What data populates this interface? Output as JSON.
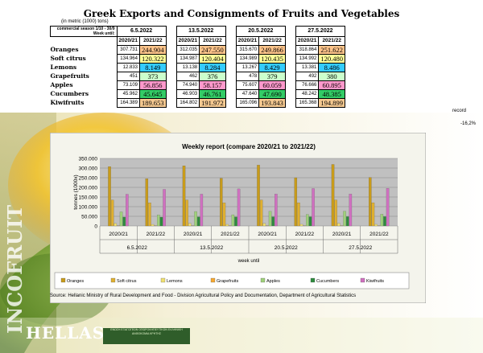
{
  "title": "Greek Exports and Consignments of Fruits and Vegetables",
  "unit_note": "(in metric (1000) tons)",
  "table": {
    "season_label": "commercial season 1/10 - 30/9",
    "week_until_label": "Week until:",
    "weeks": [
      "6.5.2022",
      "13.5.2022",
      "20.5.2022",
      "27.5.2022"
    ],
    "years": [
      "2020/21",
      "2021/22"
    ],
    "rows": [
      {
        "name": "Oranges",
        "color": "#ffc48a",
        "vals": [
          "307.731",
          "244.904",
          "312.035",
          "247.550",
          "315.670",
          "249.866",
          "318.864",
          "251.622"
        ]
      },
      {
        "name": "Soft citrus",
        "color": "#ffff99",
        "vals": [
          "134.964",
          "120.322",
          "134.987",
          "120.404",
          "134.989",
          "120.435",
          "134.992",
          "120.480"
        ]
      },
      {
        "name": "Lemons",
        "color": "#33ccff",
        "vals": [
          "12.833",
          "8.149",
          "13.138",
          "8.284",
          "13.267",
          "8.429",
          "13.381",
          "8.486"
        ]
      },
      {
        "name": "Grapefruits",
        "color": "#ccffcc",
        "vals": [
          "451",
          "373",
          "462",
          "376",
          "478",
          "379",
          "492",
          "380"
        ]
      },
      {
        "name": "Apples",
        "color": "#ff99cc",
        "vals": [
          "73.109",
          "56.856",
          "74.940",
          "58.157",
          "75.607",
          "60.059",
          "76.666",
          "60.895"
        ]
      },
      {
        "name": "Cucumbers",
        "color": "#33cc66",
        "vals": [
          "45.962",
          "45.645",
          "46.903",
          "46.761",
          "47.640",
          "47.690",
          "48.242",
          "48.385"
        ]
      },
      {
        "name": "Kiwifruits",
        "color": "#f4c890",
        "vals": [
          "164.389",
          "189.653",
          "164.802",
          "191.972",
          "165.096",
          "193.843",
          "165.368",
          "194.899"
        ]
      }
    ],
    "record_note": "record",
    "pct_note": "-16,2%"
  },
  "chart_data": {
    "type": "bar",
    "title": "Weekly report (compare 2020/21 to 2021/22)",
    "ylabel": "tonnes (1000x)",
    "xlabel": "week until",
    "ylim": [
      0,
      350000
    ],
    "y_ticks": [
      "0",
      "50.000",
      "100.000",
      "150.000",
      "200.000",
      "250.000",
      "300.000",
      "350.000"
    ],
    "categories": [
      "2020/21",
      "2021/22",
      "2020/21",
      "2021/22",
      "2020/21",
      "2021/22",
      "2020/21",
      "2021/22"
    ],
    "groups": [
      "6.5.2022",
      "13.5.2022",
      "20.5.2022",
      "27.5.2022"
    ],
    "series": [
      {
        "name": "Oranges",
        "color": "#c89b1a",
        "values": [
          307731,
          244904,
          312035,
          247550,
          315670,
          249866,
          318864,
          251622
        ]
      },
      {
        "name": "Soft citrus",
        "color": "#e0b030",
        "values": [
          134964,
          120322,
          134987,
          120404,
          134989,
          120435,
          134992,
          120480
        ]
      },
      {
        "name": "Lemons",
        "color": "#f0e070",
        "values": [
          12833,
          8149,
          13138,
          8284,
          13267,
          8429,
          13381,
          8486
        ]
      },
      {
        "name": "Grapefruits",
        "color": "#f7a830",
        "values": [
          451,
          373,
          462,
          376,
          478,
          379,
          492,
          380
        ]
      },
      {
        "name": "Apples",
        "color": "#9fd07a",
        "values": [
          73109,
          56856,
          74940,
          58157,
          75607,
          60059,
          76666,
          60895
        ]
      },
      {
        "name": "Cucumbers",
        "color": "#2e8b3e",
        "values": [
          45962,
          45645,
          46903,
          46761,
          47640,
          47690,
          48242,
          48385
        ]
      },
      {
        "name": "Kiwifruits",
        "color": "#d070c0",
        "values": [
          164389,
          189653,
          164802,
          191972,
          165096,
          193843,
          165368,
          194899
        ]
      }
    ]
  },
  "source": "Source: Hellanic Ministry of Rural Development and Food - Division Agricultural Policy and Documentation, Department of Agricultural Statistics",
  "brand": {
    "vertical": "INCOFRUIT",
    "bottom": "HELLAS",
    "stamp": "ΕΝΩΣΗ ΕΞΑΓΩΓΕΩΝ ΟΠΩΡΟΚΗΠΕΥΤΙΚΩΝ ΕΛΛΗΝΙΚΗ ΑΝΘΟΚΟΜΙΑ ΚΡΗΤΗΣ"
  }
}
